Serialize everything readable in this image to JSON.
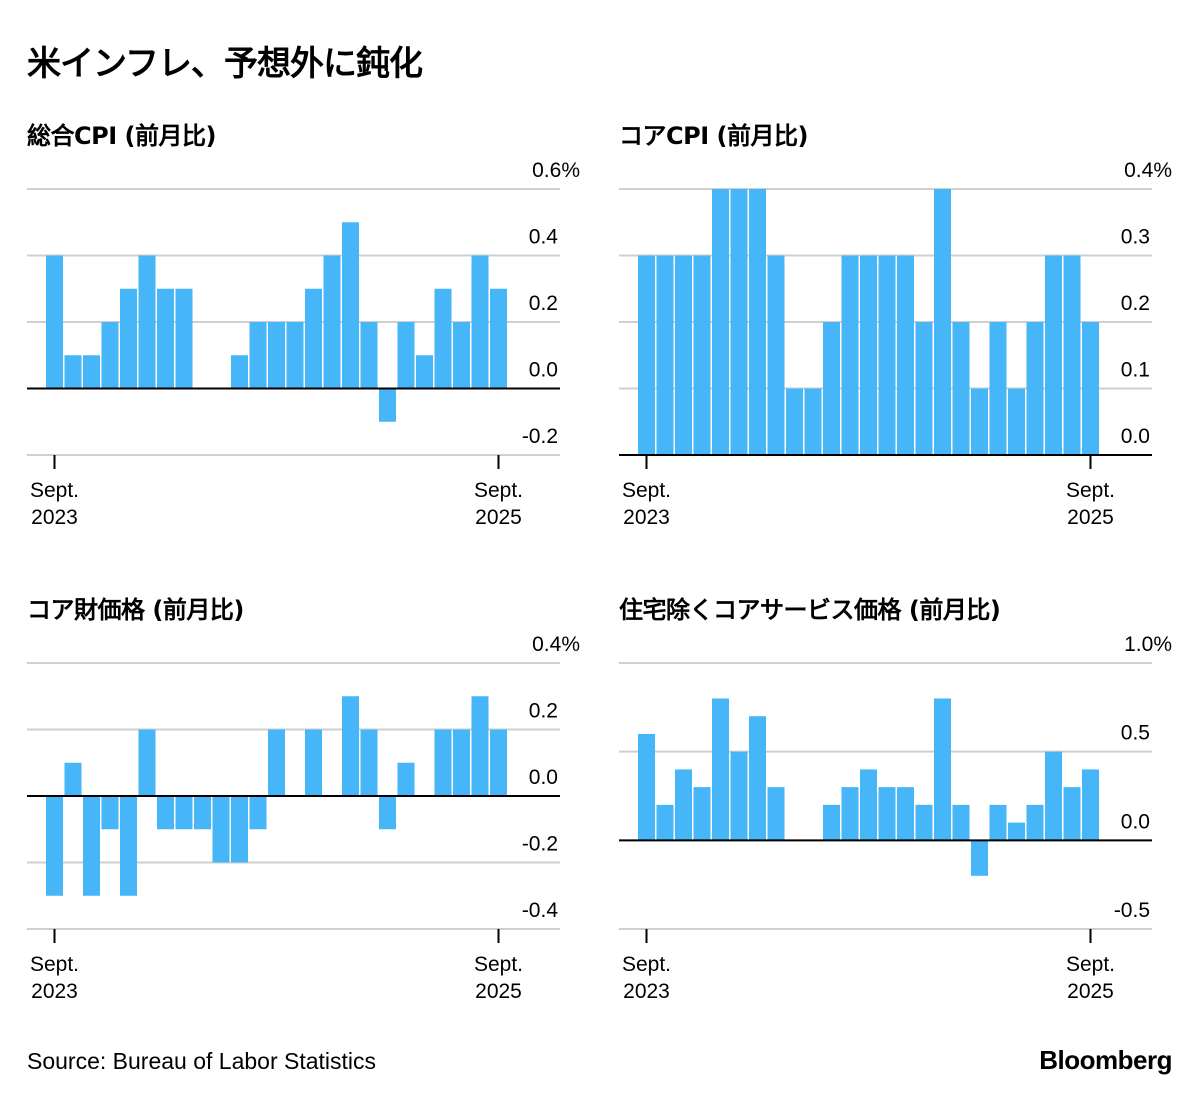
{
  "title": "米インフレ、予想外に鈍化",
  "source": "Source: Bureau of Labor Statistics",
  "brand": "Bloomberg",
  "colors": {
    "bar": "#47b6f8",
    "grid": "#cfcfcf",
    "axis": "#000000"
  },
  "chart_data": [
    {
      "type": "bar",
      "title": "総合CPI (前月比)",
      "ylim": [
        -0.2,
        0.6
      ],
      "yticks": [
        "-0.2",
        "0.0",
        "0.2",
        "0.4",
        "0.6%"
      ],
      "ytick_values": [
        -0.2,
        0.0,
        0.2,
        0.4,
        0.6
      ],
      "xtick_labels": [
        [
          "Sept.",
          "2023"
        ],
        [
          "Sept.",
          "2025"
        ]
      ],
      "period": "Sept. 2023 – Sept. 2025 (monthly)",
      "values": [
        0.4,
        0.1,
        0.1,
        0.2,
        0.3,
        0.4,
        0.3,
        0.3,
        0.0,
        0.0,
        0.1,
        0.2,
        0.2,
        0.2,
        0.3,
        0.4,
        0.5,
        0.2,
        -0.1,
        0.2,
        0.1,
        0.3,
        0.2,
        0.4,
        0.3
      ]
    },
    {
      "type": "bar",
      "title": "コアCPI (前月比)",
      "ylim": [
        0.0,
        0.4
      ],
      "yticks": [
        "0.0",
        "0.1",
        "0.2",
        "0.3",
        "0.4%"
      ],
      "ytick_values": [
        0.0,
        0.1,
        0.2,
        0.3,
        0.4
      ],
      "xtick_labels": [
        [
          "Sept.",
          "2023"
        ],
        [
          "Sept.",
          "2025"
        ]
      ],
      "period": "Sept. 2023 – Sept. 2025 (monthly)",
      "values": [
        0.3,
        0.3,
        0.3,
        0.3,
        0.4,
        0.4,
        0.4,
        0.3,
        0.1,
        0.1,
        0.2,
        0.3,
        0.3,
        0.3,
        0.3,
        0.2,
        0.4,
        0.2,
        0.1,
        0.2,
        0.1,
        0.2,
        0.3,
        0.3,
        0.2
      ]
    },
    {
      "type": "bar",
      "title": "コア財価格 (前月比)",
      "ylim": [
        -0.4,
        0.4
      ],
      "yticks": [
        "-0.4",
        "-0.2",
        "0.0",
        "0.2",
        "0.4%"
      ],
      "ytick_values": [
        -0.4,
        -0.2,
        0.0,
        0.2,
        0.4
      ],
      "xtick_labels": [
        [
          "Sept.",
          "2023"
        ],
        [
          "Sept.",
          "2025"
        ]
      ],
      "period": "Sept. 2023 – Sept. 2025 (monthly)",
      "values": [
        -0.3,
        0.1,
        -0.3,
        -0.1,
        -0.3,
        0.2,
        -0.1,
        -0.1,
        -0.1,
        -0.2,
        -0.2,
        -0.1,
        0.2,
        0.0,
        0.2,
        0.0,
        0.3,
        0.2,
        -0.1,
        0.1,
        0.0,
        0.2,
        0.2,
        0.3,
        0.2
      ]
    },
    {
      "type": "bar",
      "title": "住宅除くコアサービス価格 (前月比)",
      "ylim": [
        -0.5,
        1.0
      ],
      "yticks": [
        "-0.5",
        "0.0",
        "0.5",
        "1.0%"
      ],
      "ytick_values": [
        -0.5,
        0.0,
        0.5,
        1.0
      ],
      "xtick_labels": [
        [
          "Sept.",
          "2023"
        ],
        [
          "Sept.",
          "2025"
        ]
      ],
      "period": "Sept. 2023 – Sept. 2025 (monthly)",
      "values": [
        0.6,
        0.2,
        0.4,
        0.3,
        0.8,
        0.5,
        0.7,
        0.3,
        0.0,
        0.0,
        0.2,
        0.3,
        0.4,
        0.3,
        0.3,
        0.2,
        0.8,
        0.2,
        -0.2,
        0.2,
        0.1,
        0.2,
        0.5,
        0.3,
        0.4
      ]
    }
  ]
}
